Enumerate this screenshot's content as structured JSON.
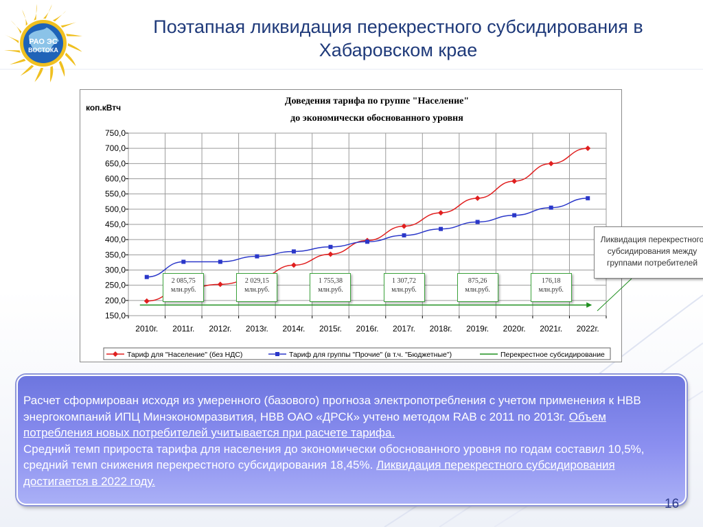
{
  "header": {
    "logo_text_line1": "РАО ЭС",
    "logo_text_line2": "ВОСТОКА",
    "title_line1": "Поэтапная ликвидация перекрестного субсидирования в",
    "title_line2": "Хабаровском крае"
  },
  "chart_data": {
    "type": "line",
    "title_line1": "Доведения тарифа по группе \"Население\"",
    "title_line2": "до экономически обоснованного уровня",
    "ylabel": "коп.кВтч",
    "ylim": [
      150,
      750
    ],
    "ytick_step": 50,
    "ytick_labels": [
      "150,0",
      "200,0",
      "250,0",
      "300,0",
      "350,0",
      "400,0",
      "450,0",
      "500,0",
      "550,0",
      "600,0",
      "650,0",
      "700,0",
      "750,0"
    ],
    "categories": [
      "2010г.",
      "2011г.",
      "2012г.",
      "2013г.",
      "2014г.",
      "2015г.",
      "2016г.",
      "2017г.",
      "2018г.",
      "2019г.",
      "2020г.",
      "2021г.",
      "2022г."
    ],
    "grid": true,
    "legend_position": "bottom",
    "series": [
      {
        "name": "Тариф для \"Население\" (без НДС)",
        "color": "#e01f1f",
        "marker": "diamond",
        "values": [
          198,
          238,
          253,
          273,
          316,
          352,
          397,
          444,
          488,
          536,
          592,
          650,
          700
        ]
      },
      {
        "name": "Тариф для группы \"Прочие\" (в т.ч. \"Бюджетные\")",
        "color": "#2a37c9",
        "marker": "square",
        "values": [
          277,
          327,
          327,
          345,
          361,
          376,
          393,
          414,
          435,
          458,
          480,
          505,
          536
        ]
      },
      {
        "name": "Перекрестное субсидирование",
        "color": "#1f8f1f",
        "marker": "none",
        "values": [
          null,
          null,
          null,
          null,
          null,
          null,
          null,
          null,
          null,
          null,
          null,
          null,
          null
        ]
      }
    ],
    "annotations": [
      {
        "line1": "2 085,75",
        "line2": "млн.руб."
      },
      {
        "line1": "2 029,15",
        "line2": "млн.руб."
      },
      {
        "line1": "1 755,38",
        "line2": "млн.руб."
      },
      {
        "line1": "1 307,72",
        "line2": "млн.руб."
      },
      {
        "line1": "875,26",
        "line2": "млн.руб."
      },
      {
        "line1": "176,18",
        "line2": "млн.руб."
      }
    ]
  },
  "callout": {
    "line1": "Ликвидация перекрестного",
    "line2": "субсидирования между",
    "line3": "группами потребителей"
  },
  "info": {
    "text1": "Расчет сформирован исходя из умеренного (базового) прогноза электропотребления с учетом применения к НВВ энергокомпаний ИПЦ Минэкономразвития, НВВ ОАО «ДРСК» учтено методом RAB с 2011 по 2013г. ",
    "text2_underlined": "Объем потребления новых потребителей учитывается при расчете тарифа.",
    "text3": "Средний темп прироста тарифа для населения до экономически обоснованного уровня по годам составил 10,5%, средний темп снижения перекрестного субсидирования 18,45%. ",
    "text4_underlined": "Ликвидация перекрестного субсидирования достигается в 2022 году."
  },
  "page_number": "16",
  "colors": {
    "title": "#1f3a7a",
    "panel": "#7b82e6",
    "red_series": "#e01f1f",
    "blue_series": "#2a37c9",
    "green_series": "#1f8f1f"
  }
}
